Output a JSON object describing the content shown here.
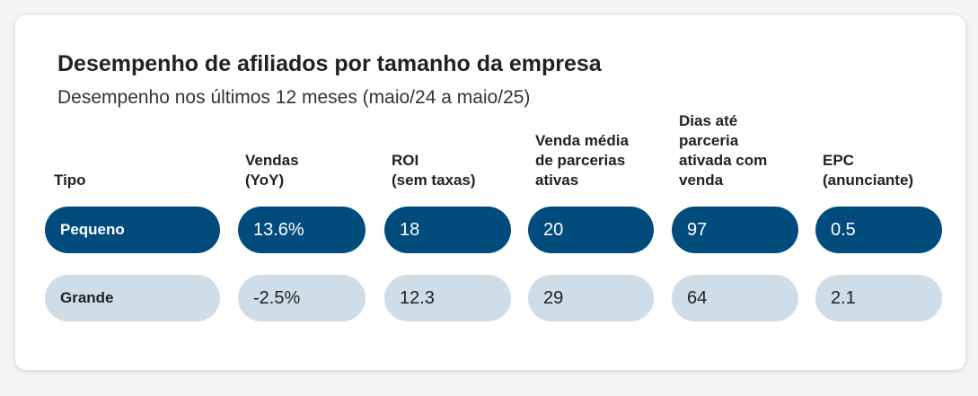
{
  "header": {
    "title": "Desempenho de afiliados por tamanho da empresa",
    "subtitle": "Desempenho nos últimos 12 meses (maio/24 a maio/25)"
  },
  "table": {
    "columns": [
      [
        "Tipo"
      ],
      [
        "Vendas",
        "(YoY)"
      ],
      [
        "ROI",
        "(sem taxas)"
      ],
      [
        "Venda média",
        "de parcerias",
        "ativas"
      ],
      [
        "Dias até",
        "parceria",
        "ativada com",
        "venda"
      ],
      [
        "EPC",
        "(anunciante)"
      ]
    ],
    "rows": [
      [
        "Pequeno",
        "13.6%",
        "18",
        "20",
        "97",
        "0.5"
      ],
      [
        "Grande",
        "-2.5%",
        "12.3",
        "29",
        "64",
        "2.1"
      ]
    ]
  }
}
